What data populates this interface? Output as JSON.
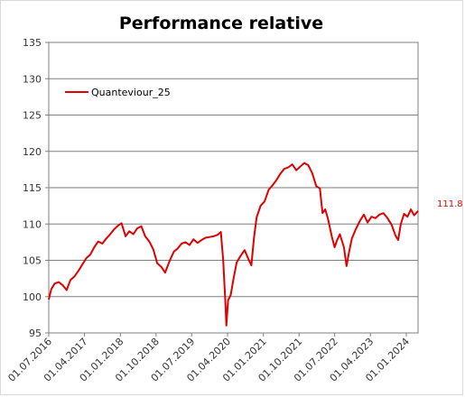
{
  "chart_data": {
    "type": "line",
    "title": "Performance relative",
    "xlabel": "",
    "ylabel": "",
    "ylim": [
      95,
      135
    ],
    "yticks": [
      95,
      100,
      105,
      110,
      115,
      120,
      125,
      130,
      135
    ],
    "xlim": [
      "2016-07-01",
      "2024-03-31"
    ],
    "xticks": [
      "01.07.2016",
      "01.04.2017",
      "01.01.2018",
      "01.10.2018",
      "01.07.2019",
      "01.04.2020",
      "01.01.2021",
      "01.10.2021",
      "01.07.2022",
      "01.04.2023",
      "01.01.2024"
    ],
    "grid": "horizontal",
    "legend": "top-left",
    "color": "#e00000",
    "last_value_label": "111.8",
    "series": [
      {
        "name": "Quanteviour_25",
        "color": "#e00000",
        "points": [
          [
            "2016-07-01",
            99.6
          ],
          [
            "2016-07-20",
            101.0
          ],
          [
            "2016-08-15",
            101.8
          ],
          [
            "2016-09-15",
            102.0
          ],
          [
            "2016-10-15",
            101.6
          ],
          [
            "2016-11-15",
            100.9
          ],
          [
            "2016-12-15",
            102.3
          ],
          [
            "2017-01-15",
            102.8
          ],
          [
            "2017-02-15",
            103.6
          ],
          [
            "2017-03-15",
            104.4
          ],
          [
            "2017-04-15",
            105.3
          ],
          [
            "2017-05-15",
            105.8
          ],
          [
            "2017-06-15",
            106.8
          ],
          [
            "2017-07-15",
            107.6
          ],
          [
            "2017-08-15",
            107.3
          ],
          [
            "2017-09-15",
            108.0
          ],
          [
            "2017-10-15",
            108.6
          ],
          [
            "2017-11-15",
            109.3
          ],
          [
            "2017-12-15",
            109.8
          ],
          [
            "2018-01-10",
            110.1
          ],
          [
            "2018-02-10",
            108.3
          ],
          [
            "2018-03-10",
            109.0
          ],
          [
            "2018-04-10",
            108.6
          ],
          [
            "2018-05-10",
            109.4
          ],
          [
            "2018-06-10",
            109.7
          ],
          [
            "2018-07-10",
            108.3
          ],
          [
            "2018-08-10",
            107.6
          ],
          [
            "2018-09-10",
            106.5
          ],
          [
            "2018-10-10",
            104.6
          ],
          [
            "2018-11-10",
            104.1
          ],
          [
            "2018-12-10",
            103.3
          ],
          [
            "2019-01-15",
            105.0
          ],
          [
            "2019-02-15",
            106.2
          ],
          [
            "2019-03-15",
            106.6
          ],
          [
            "2019-04-15",
            107.3
          ],
          [
            "2019-05-15",
            107.5
          ],
          [
            "2019-06-15",
            107.1
          ],
          [
            "2019-07-15",
            107.9
          ],
          [
            "2019-08-15",
            107.4
          ],
          [
            "2019-09-15",
            107.8
          ],
          [
            "2019-10-15",
            108.1
          ],
          [
            "2019-11-15",
            108.2
          ],
          [
            "2019-12-15",
            108.3
          ],
          [
            "2020-01-15",
            108.5
          ],
          [
            "2020-02-10",
            108.9
          ],
          [
            "2020-02-28",
            105.0
          ],
          [
            "2020-03-16",
            99.0
          ],
          [
            "2020-03-23",
            96.0
          ],
          [
            "2020-04-05",
            99.5
          ],
          [
            "2020-04-25",
            100.2
          ],
          [
            "2020-05-15",
            102.3
          ],
          [
            "2020-06-10",
            104.7
          ],
          [
            "2020-07-10",
            105.6
          ],
          [
            "2020-08-10",
            106.4
          ],
          [
            "2020-09-10",
            105.1
          ],
          [
            "2020-10-01",
            104.3
          ],
          [
            "2020-10-20",
            108.0
          ],
          [
            "2020-11-10",
            110.9
          ],
          [
            "2020-12-10",
            112.5
          ],
          [
            "2021-01-10",
            113.1
          ],
          [
            "2021-02-10",
            114.7
          ],
          [
            "2021-03-10",
            115.3
          ],
          [
            "2021-04-10",
            116.0
          ],
          [
            "2021-05-10",
            116.9
          ],
          [
            "2021-06-10",
            117.6
          ],
          [
            "2021-07-10",
            117.8
          ],
          [
            "2021-08-10",
            118.2
          ],
          [
            "2021-09-10",
            117.4
          ],
          [
            "2021-10-10",
            117.9
          ],
          [
            "2021-11-10",
            118.4
          ],
          [
            "2021-12-10",
            118.1
          ],
          [
            "2022-01-10",
            117.0
          ],
          [
            "2022-02-10",
            115.2
          ],
          [
            "2022-03-10",
            114.9
          ],
          [
            "2022-03-30",
            111.5
          ],
          [
            "2022-04-20",
            112.0
          ],
          [
            "2022-05-10",
            110.8
          ],
          [
            "2022-06-10",
            108.2
          ],
          [
            "2022-07-01",
            106.8
          ],
          [
            "2022-07-20",
            107.8
          ],
          [
            "2022-08-10",
            108.6
          ],
          [
            "2022-09-10",
            106.8
          ],
          [
            "2022-09-30",
            104.2
          ],
          [
            "2022-10-20",
            106.2
          ],
          [
            "2022-11-10",
            108.0
          ],
          [
            "2022-12-10",
            109.3
          ],
          [
            "2023-01-10",
            110.4
          ],
          [
            "2023-02-10",
            111.3
          ],
          [
            "2023-03-10",
            110.2
          ],
          [
            "2023-04-10",
            111.0
          ],
          [
            "2023-05-10",
            110.8
          ],
          [
            "2023-06-10",
            111.3
          ],
          [
            "2023-07-10",
            111.5
          ],
          [
            "2023-08-10",
            110.8
          ],
          [
            "2023-09-10",
            109.9
          ],
          [
            "2023-10-10",
            108.4
          ],
          [
            "2023-10-31",
            107.8
          ],
          [
            "2023-11-20",
            110.0
          ],
          [
            "2023-12-15",
            111.4
          ],
          [
            "2024-01-10",
            111.0
          ],
          [
            "2024-02-05",
            112.0
          ],
          [
            "2024-03-01",
            111.2
          ],
          [
            "2024-03-31",
            111.8
          ]
        ]
      }
    ]
  }
}
